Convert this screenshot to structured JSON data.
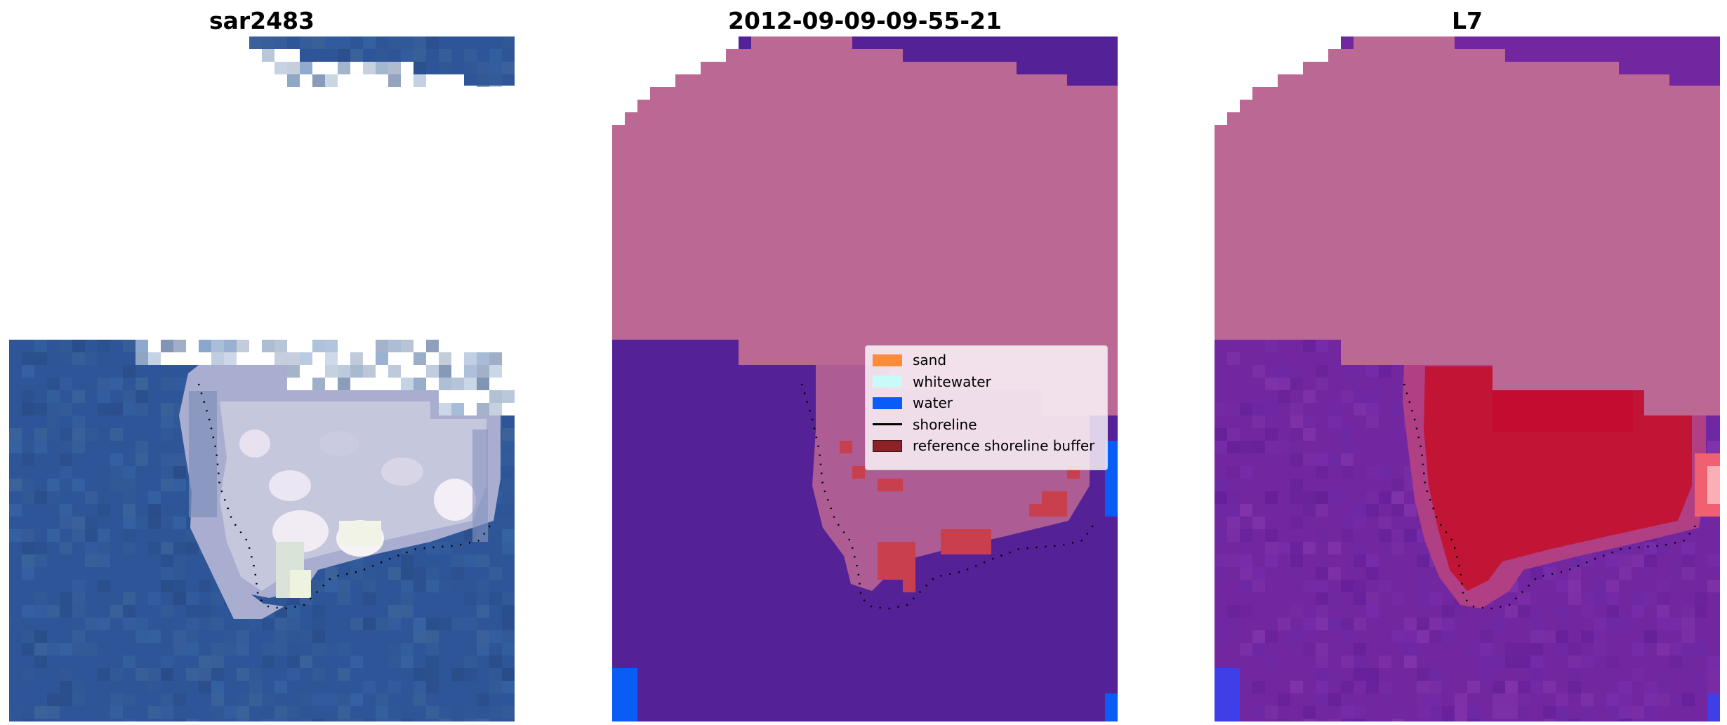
{
  "panels": [
    {
      "title": "sar2483",
      "kind": "rgb"
    },
    {
      "title": "2012-09-09-09-55-21",
      "kind": "classified"
    },
    {
      "title": "L7",
      "kind": "mndwi"
    }
  ],
  "legend": {
    "items": [
      {
        "label": "sand",
        "type": "patch",
        "color": "#fb8c3c"
      },
      {
        "label": "whitewater",
        "type": "patch",
        "color": "#c8fafa"
      },
      {
        "label": "water",
        "type": "patch",
        "color": "#0a5cf7"
      },
      {
        "label": "shoreline",
        "type": "line",
        "color": "#000000"
      },
      {
        "label": "reference shoreline buffer",
        "type": "patch",
        "color": "#8b2227"
      }
    ]
  },
  "colors": {
    "sea_rgb": "#2e5598",
    "land_rgb": "#c5c7dd",
    "buffer_overlay": "#bc6895",
    "water_class": "#542296",
    "water_bright": "#0a5cf7",
    "buffer_red": "#c8404d",
    "mndwi_sea": "#7227a0",
    "mndwi_land": "#c21536"
  }
}
